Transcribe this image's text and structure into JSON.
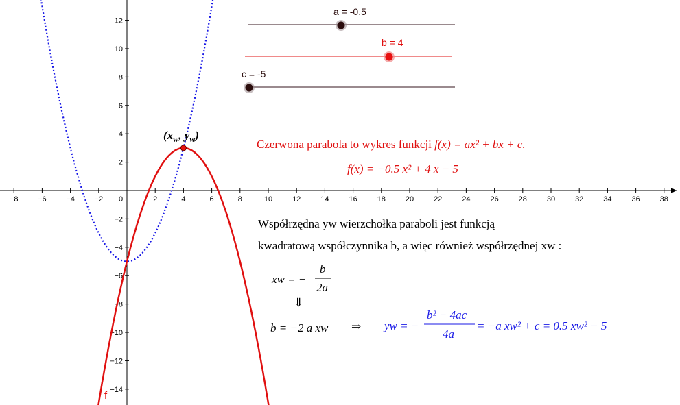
{
  "colors": {
    "red": "#e01010",
    "blue": "#1a1ae6",
    "slider_track_dark": "#9a8a8e",
    "slider_track_red": "#f08a8a",
    "knob_dark": "#2a0c0c",
    "knob_red": "#e81010"
  },
  "sliders": [
    {
      "name": "a",
      "label": "a = -0.5",
      "value": -0.5,
      "color": "dark"
    },
    {
      "name": "b",
      "label": "b = 4",
      "value": 4,
      "color": "red"
    },
    {
      "name": "c",
      "label": "c = -5",
      "value": -5,
      "color": "dark"
    }
  ],
  "graph": {
    "x_ticks": [
      "−8",
      "−6",
      "−4",
      "−2",
      "0",
      "2",
      "4",
      "6",
      "8",
      "10",
      "12",
      "14",
      "16",
      "18",
      "20",
      "22",
      "24",
      "26",
      "28",
      "30",
      "32",
      "34",
      "36",
      "38"
    ],
    "y_ticks": [
      "12",
      "10",
      "8",
      "6",
      "4",
      "2",
      "−2",
      "−4",
      "−6",
      "−8",
      "−10",
      "−12",
      "−14"
    ],
    "red_curve_label": "f",
    "vertex_label": "(xw, yw)",
    "vertex": {
      "x": 4,
      "y": 3
    },
    "red_curve": {
      "a": -0.5,
      "b": 4,
      "c": -5
    },
    "blue_curve": {
      "a": 0.5,
      "b": 0,
      "c": -5
    }
  },
  "text": {
    "line1_prefix": "Czerwona parabola to wykres funkcji ",
    "line1_formula": "f(x) = ax² + bx + c.",
    "line2": "f(x) = −0.5 x² + 4 x − 5",
    "para1": "Współrzędna yw wierzchołka paraboli jest funkcją",
    "para2": "kwadratową współczynnika b, a więc również współrzędnej xw :",
    "eq1_left": "xw = −",
    "eq1_num": "b",
    "eq1_den": "2a",
    "arrow_down": "⇓",
    "eq2": "b = −2 a xw",
    "implies": "⇒",
    "eq3_left": "yw = −",
    "eq3_num": "b² − 4ac",
    "eq3_den": "4a",
    "eq3_right": "= −a xw² + c = 0.5 xw² − 5"
  }
}
